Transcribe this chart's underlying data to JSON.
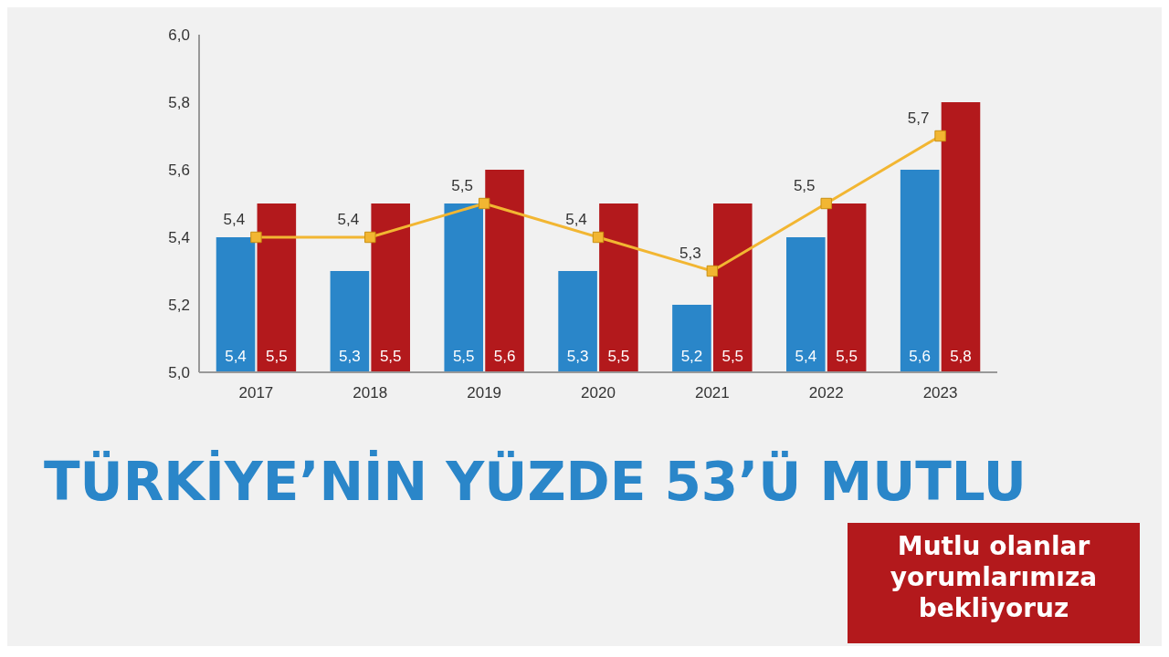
{
  "chart_data": {
    "type": "bar",
    "title": "TÜRKİYE’NİN YÜZDE 53’Ü MUTLU",
    "annotations": [
      "Mutlu olanlar yorumlarımıza bekliyoruz"
    ],
    "categories": [
      "2017",
      "2018",
      "2019",
      "2020",
      "2021",
      "2022",
      "2023"
    ],
    "series": [
      {
        "color": "#2a86c9",
        "values": [
          5.4,
          5.3,
          5.5,
          5.3,
          5.2,
          5.4,
          5.6
        ],
        "value_labels": [
          "5,4",
          "5,3",
          "5,5",
          "5,3",
          "5,2",
          "5,4",
          "5,6"
        ]
      },
      {
        "color": "#b3191c",
        "values": [
          5.5,
          5.5,
          5.6,
          5.5,
          5.5,
          5.5,
          5.8
        ],
        "value_labels": [
          "5,5",
          "5,5",
          "5,6",
          "5,5",
          "5,5",
          "5,5",
          "5,8"
        ]
      },
      {
        "type": "line",
        "color": "#f2b632",
        "values": [
          5.4,
          5.4,
          5.5,
          5.4,
          5.3,
          5.5,
          5.7
        ],
        "value_labels": [
          "5,4",
          "5,4",
          "5,5",
          "5,4",
          "5,3",
          "5,5",
          "5,7"
        ],
        "marker": "square"
      }
    ],
    "ylim": [
      5.0,
      6.0
    ],
    "yticks": [
      {
        "value": 5.0,
        "label": "5,0"
      },
      {
        "value": 5.2,
        "label": "5,2"
      },
      {
        "value": 5.4,
        "label": "5,4"
      },
      {
        "value": 5.6,
        "label": "5,6"
      },
      {
        "value": 5.8,
        "label": "5,8"
      },
      {
        "value": 6.0,
        "label": "6,0"
      }
    ]
  }
}
